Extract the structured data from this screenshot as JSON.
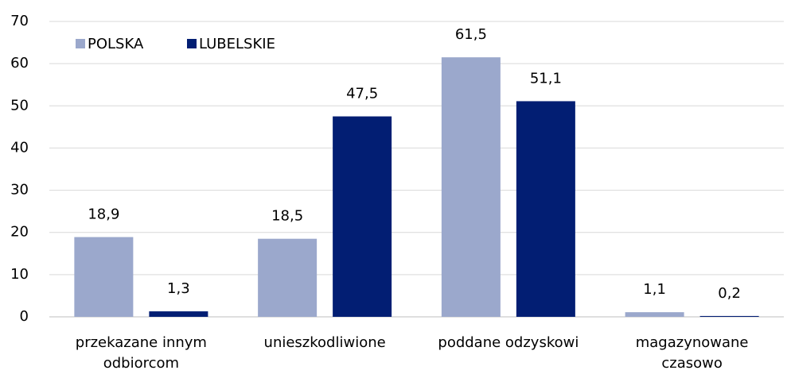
{
  "chart_data": {
    "type": "bar",
    "categories": [
      "przekazane innym odbiorcom",
      "unieszkodliwione",
      "poddane odzyskowi",
      "magazynowane czasowo"
    ],
    "series": [
      {
        "name": "POLSKA",
        "color": "#9ba8cc",
        "values": [
          18.9,
          18.5,
          61.5,
          1.1
        ],
        "value_labels": [
          "18,9",
          "18,5",
          "61,5",
          "1,1"
        ]
      },
      {
        "name": "LUBELSKIE",
        "color": "#021e73",
        "values": [
          1.3,
          47.5,
          51.1,
          0.2
        ],
        "value_labels": [
          "1,3",
          "47,5",
          "51,1",
          "0,2"
        ]
      }
    ],
    "ylim": [
      0,
      70
    ],
    "yticks": [
      0,
      10,
      20,
      30,
      40,
      50,
      60,
      70
    ],
    "grid": true,
    "legend": "top-left"
  }
}
